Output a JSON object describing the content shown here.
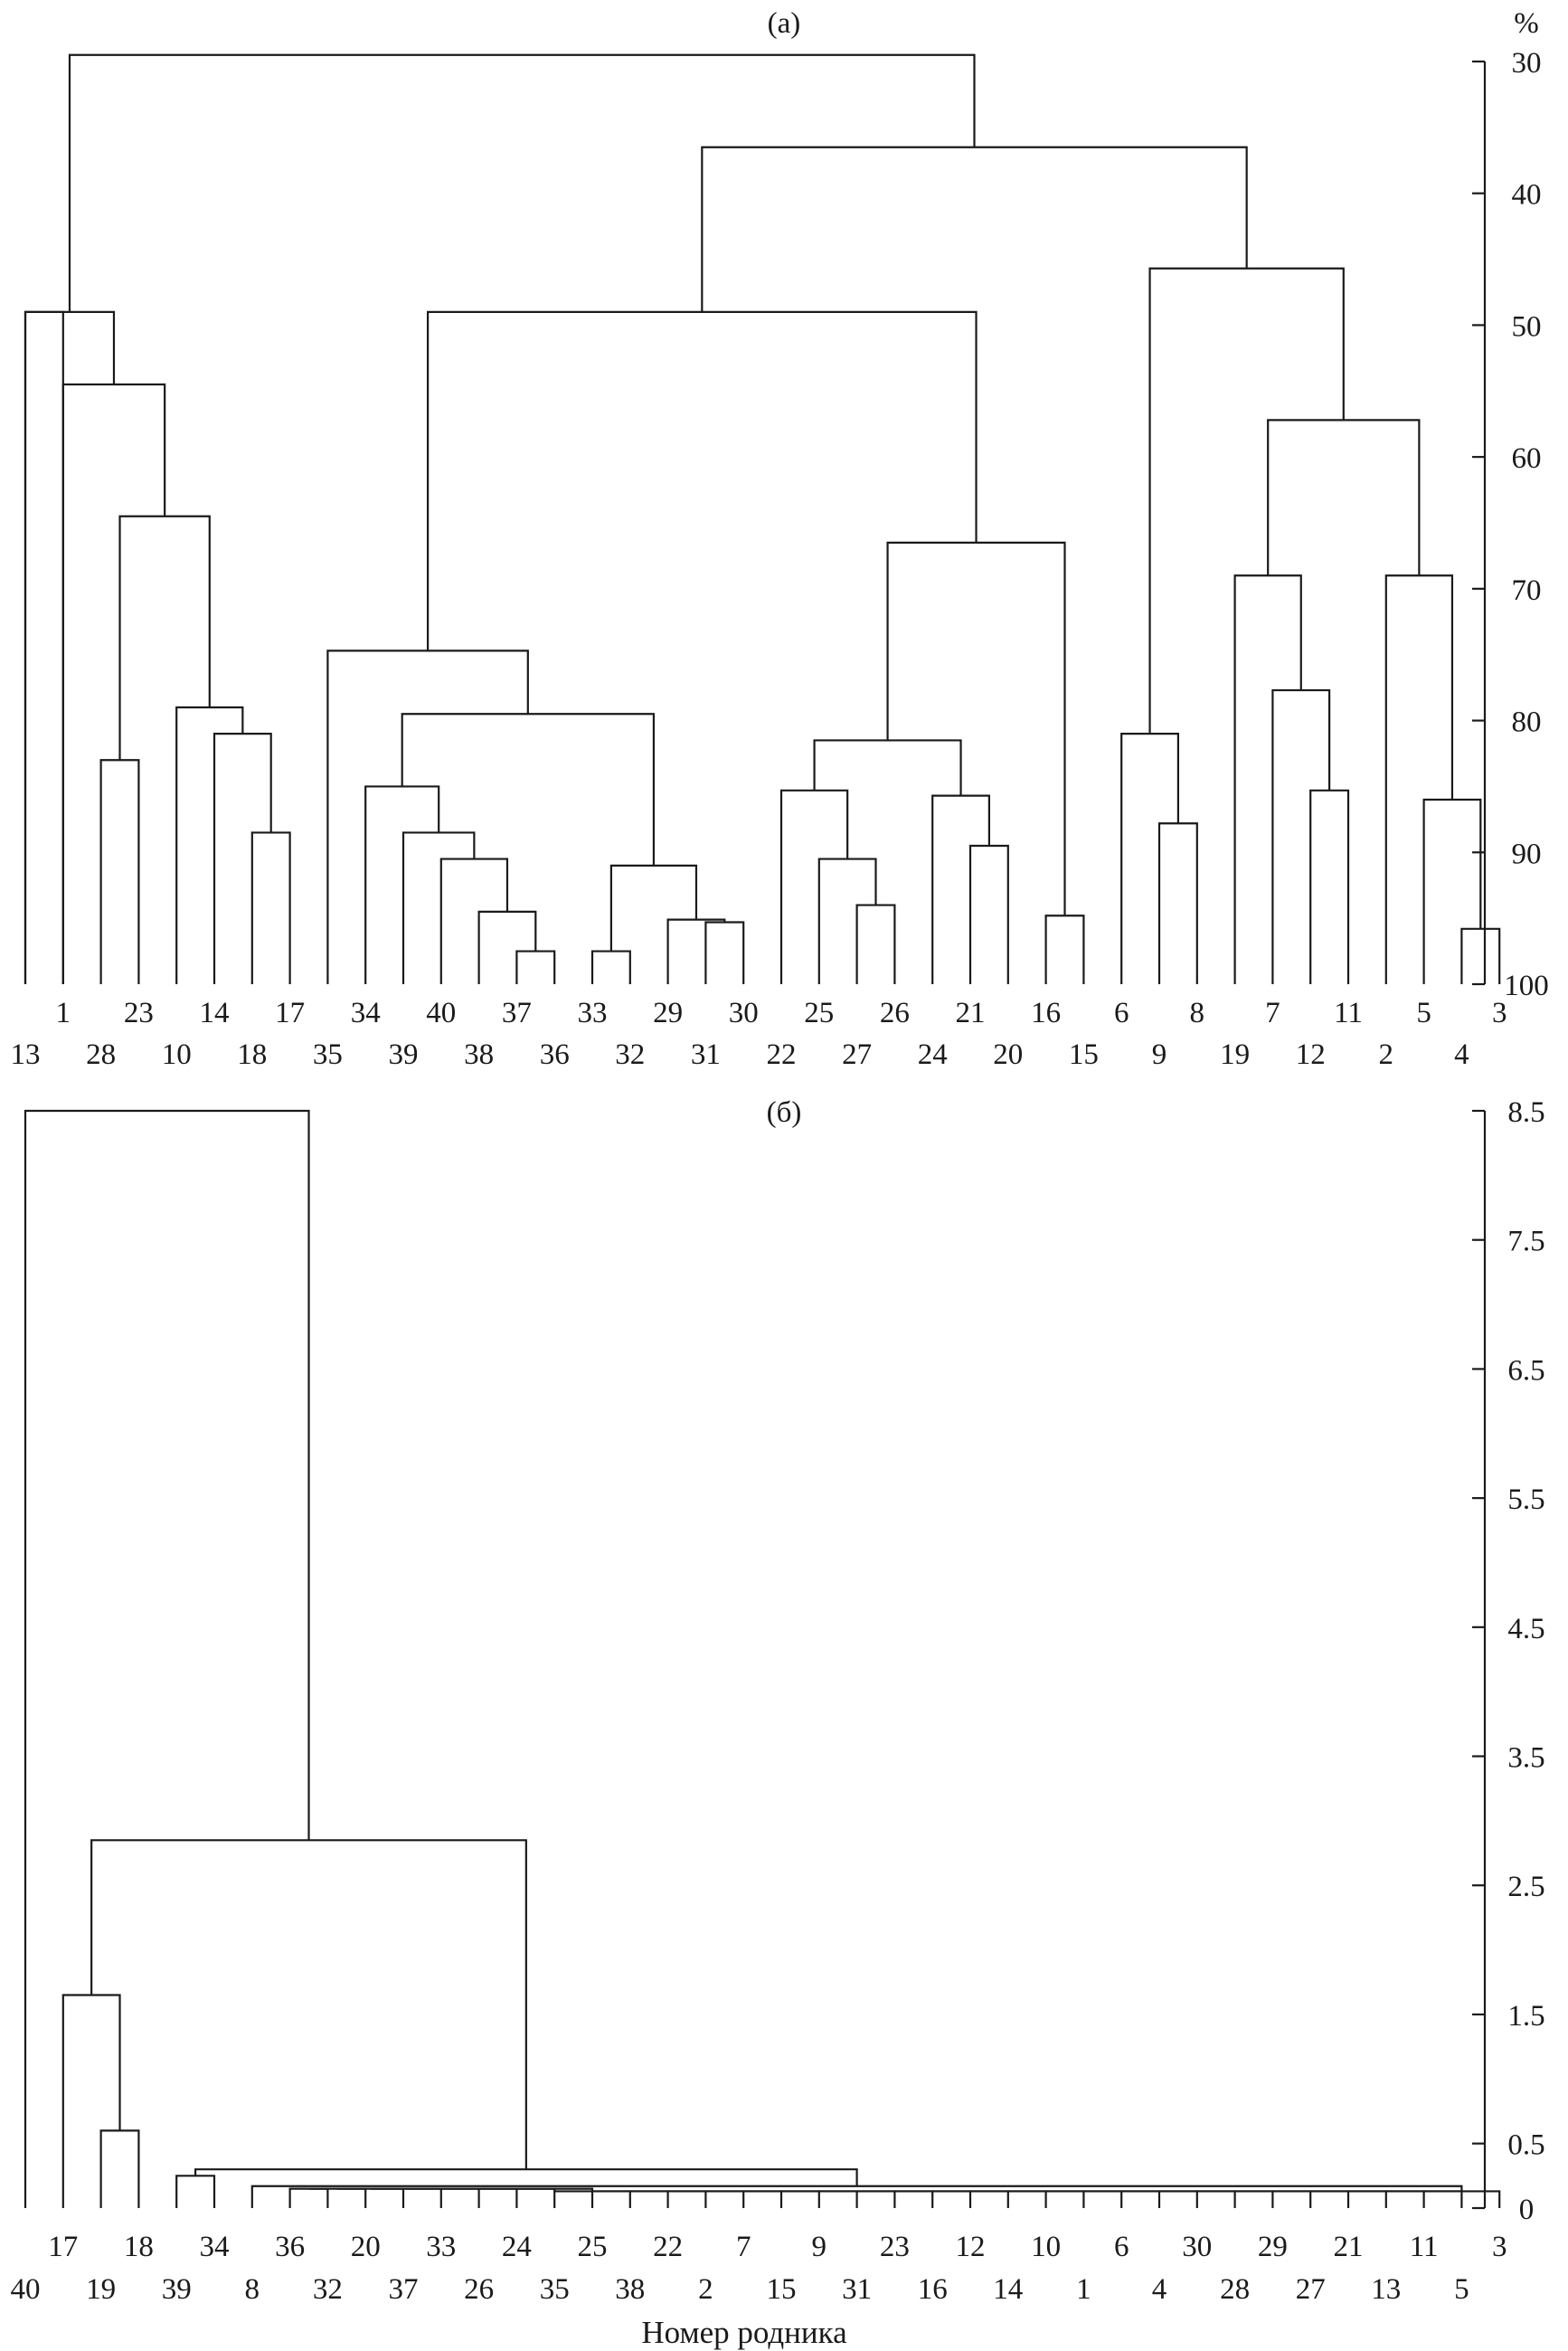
{
  "chart_data": [
    {
      "type": "dendrogram",
      "panel_label": "(а)",
      "unit_label": "%",
      "y_ticks": [
        30,
        40,
        50,
        60,
        70,
        80,
        90,
        100
      ],
      "ylim": [
        30,
        100
      ],
      "y_direction": "similarity, 100 at bottom",
      "leaf_order": [
        "13",
        "1",
        "28",
        "23",
        "10",
        "14",
        "18",
        "17",
        "35",
        "34",
        "39",
        "40",
        "38",
        "37",
        "36",
        "33",
        "32",
        "29",
        "31",
        "30",
        "22",
        "25",
        "27",
        "26",
        "24",
        "21",
        "20",
        "16",
        "15",
        "6",
        "9",
        "8",
        "19",
        "7",
        "12",
        "11",
        "2",
        "5",
        "4",
        "3"
      ],
      "merges": [
        {
          "a": "leaf:0",
          "b": "leaf:1",
          "h": 49
        },
        {
          "a": "leaf:2",
          "b": "leaf:3",
          "h": 83
        },
        {
          "a": "leaf:6",
          "b": "leaf:7",
          "h": 88.5
        },
        {
          "a": "leaf:5",
          "b": "node:2",
          "h": 81
        },
        {
          "a": "leaf:4",
          "b": "node:3",
          "h": 79
        },
        {
          "a": "node:1",
          "b": "node:4",
          "h": 64.5
        },
        {
          "a": "leaf:1",
          "b": "node:5",
          "h": 54.5
        },
        {
          "a": "leaf:0",
          "b": "node:6",
          "h": 49
        },
        {
          "a": "leaf:13",
          "b": "leaf:14",
          "h": 97.5
        },
        {
          "a": "leaf:12",
          "b": "node:8",
          "h": 94.5
        },
        {
          "a": "leaf:11",
          "b": "node:9",
          "h": 90.5
        },
        {
          "a": "leaf:10",
          "b": "node:10",
          "h": 88.5
        },
        {
          "a": "leaf:9",
          "b": "node:11",
          "h": 85
        },
        {
          "a": "leaf:15",
          "b": "leaf:16",
          "h": 97.5
        },
        {
          "a": "leaf:18",
          "b": "leaf:19",
          "h": 95.3
        },
        {
          "a": "leaf:17",
          "b": "node:14",
          "h": 95.1
        },
        {
          "a": "node:13",
          "b": "node:15",
          "h": 91
        },
        {
          "a": "node:12",
          "b": "node:16",
          "h": 79.5
        },
        {
          "a": "leaf:8",
          "b": "node:17",
          "h": 74.7
        },
        {
          "a": "leaf:22",
          "b": "leaf:23",
          "h": 94
        },
        {
          "a": "leaf:21",
          "b": "node:19",
          "h": 90.5
        },
        {
          "a": "leaf:20",
          "b": "node:20",
          "h": 85.3
        },
        {
          "a": "leaf:25",
          "b": "leaf:26",
          "h": 89.5
        },
        {
          "a": "leaf:24",
          "b": "node:22",
          "h": 85.7
        },
        {
          "a": "node:21",
          "b": "node:23",
          "h": 81.5
        },
        {
          "a": "leaf:27",
          "b": "leaf:28",
          "h": 94.8
        },
        {
          "a": "node:24",
          "b": "node:25",
          "h": 66.5
        },
        {
          "a": "node:18",
          "b": "node:26",
          "h": 49
        },
        {
          "a": "leaf:30",
          "b": "leaf:31",
          "h": 87.8
        },
        {
          "a": "leaf:29",
          "b": "node:28",
          "h": 81
        },
        {
          "a": "leaf:34",
          "b": "leaf:35",
          "h": 85.3
        },
        {
          "a": "leaf:33",
          "b": "node:30",
          "h": 77.7
        },
        {
          "a": "leaf:32",
          "b": "node:31",
          "h": 69
        },
        {
          "a": "leaf:38",
          "b": "leaf:39",
          "h": 95.8
        },
        {
          "a": "leaf:37",
          "b": "node:33",
          "h": 86
        },
        {
          "a": "leaf:36",
          "b": "node:34",
          "h": 69
        },
        {
          "a": "node:32",
          "b": "node:35",
          "h": 57.2
        },
        {
          "a": "node:29",
          "b": "node:36",
          "h": 45.7
        },
        {
          "a": "node:27",
          "b": "node:37",
          "h": 36.5
        },
        {
          "a": "node:7",
          "b": "node:38",
          "h": 29.5
        }
      ]
    },
    {
      "type": "dendrogram",
      "panel_label": "(б)",
      "y_ticks": [
        0,
        0.5,
        1.5,
        2.5,
        3.5,
        4.5,
        5.5,
        6.5,
        7.5,
        8.5
      ],
      "ylim": [
        0,
        8.5
      ],
      "xlabel": "Номер родника",
      "leaf_order": [
        "40",
        "17",
        "19",
        "18",
        "39",
        "34",
        "8",
        "36",
        "32",
        "20",
        "37",
        "33",
        "26",
        "24",
        "35",
        "25",
        "38",
        "22",
        "2",
        "7",
        "15",
        "9",
        "31",
        "23",
        "16",
        "12",
        "14",
        "10",
        "1",
        "6",
        "4",
        "30",
        "28",
        "29",
        "27",
        "21",
        "13",
        "11",
        "5",
        "3"
      ],
      "merges": [
        {
          "a": "leaf:2",
          "b": "leaf:3",
          "h": 0.6
        },
        {
          "a": "leaf:1",
          "b": "node:0",
          "h": 1.65
        },
        {
          "a": "leaf:4",
          "b": "leaf:5",
          "h": 0.25
        },
        {
          "a": "leaf:7",
          "b": "leaf:8",
          "h": 0.15
        },
        {
          "a": "node:3",
          "b": "leaf:9",
          "h": 0.15
        },
        {
          "a": "node:4",
          "b": "leaf:10",
          "h": 0.15
        },
        {
          "a": "node:5",
          "b": "leaf:11",
          "h": 0.15
        },
        {
          "a": "node:6",
          "b": "leaf:12",
          "h": 0.15
        },
        {
          "a": "node:7",
          "b": "leaf:13",
          "h": 0.15
        },
        {
          "a": "node:8",
          "b": "leaf:14",
          "h": 0.15
        },
        {
          "a": "node:9",
          "b": "leaf:15",
          "h": 0.15
        },
        {
          "a": "node:10",
          "b": "leaf:16",
          "h": 0.13
        },
        {
          "a": "node:11",
          "b": "leaf:17",
          "h": 0.13
        },
        {
          "a": "node:12",
          "b": "leaf:18",
          "h": 0.13
        },
        {
          "a": "node:13",
          "b": "leaf:19",
          "h": 0.13
        },
        {
          "a": "node:14",
          "b": "leaf:20",
          "h": 0.13
        },
        {
          "a": "node:15",
          "b": "leaf:21",
          "h": 0.13
        },
        {
          "a": "node:16",
          "b": "leaf:22",
          "h": 0.13
        },
        {
          "a": "node:17",
          "b": "leaf:23",
          "h": 0.13
        },
        {
          "a": "node:18",
          "b": "leaf:24",
          "h": 0.13
        },
        {
          "a": "node:19",
          "b": "leaf:25",
          "h": 0.13
        },
        {
          "a": "node:20",
          "b": "leaf:26",
          "h": 0.13
        },
        {
          "a": "node:21",
          "b": "leaf:27",
          "h": 0.13
        },
        {
          "a": "node:22",
          "b": "leaf:28",
          "h": 0.13
        },
        {
          "a": "node:23",
          "b": "leaf:29",
          "h": 0.13
        },
        {
          "a": "node:24",
          "b": "leaf:30",
          "h": 0.13
        },
        {
          "a": "node:25",
          "b": "leaf:31",
          "h": 0.13
        },
        {
          "a": "node:26",
          "b": "leaf:32",
          "h": 0.13
        },
        {
          "a": "node:27",
          "b": "leaf:33",
          "h": 0.13
        },
        {
          "a": "node:28",
          "b": "leaf:34",
          "h": 0.13
        },
        {
          "a": "node:29",
          "b": "leaf:35",
          "h": 0.13
        },
        {
          "a": "node:30",
          "b": "leaf:36",
          "h": 0.13
        },
        {
          "a": "node:31",
          "b": "leaf:37",
          "h": 0.13
        },
        {
          "a": "node:32",
          "b": "leaf:38",
          "h": 0.13
        },
        {
          "a": "node:33",
          "b": "leaf:39",
          "h": 0.13
        },
        {
          "a": "leaf:6",
          "b": "node:34",
          "h": 0.17
        },
        {
          "a": "node:2",
          "b": "node:35",
          "h": 0.3
        },
        {
          "a": "node:1",
          "b": "node:36",
          "h": 2.85
        },
        {
          "a": "leaf:0",
          "b": "node:37",
          "h": 8.5
        }
      ]
    }
  ]
}
